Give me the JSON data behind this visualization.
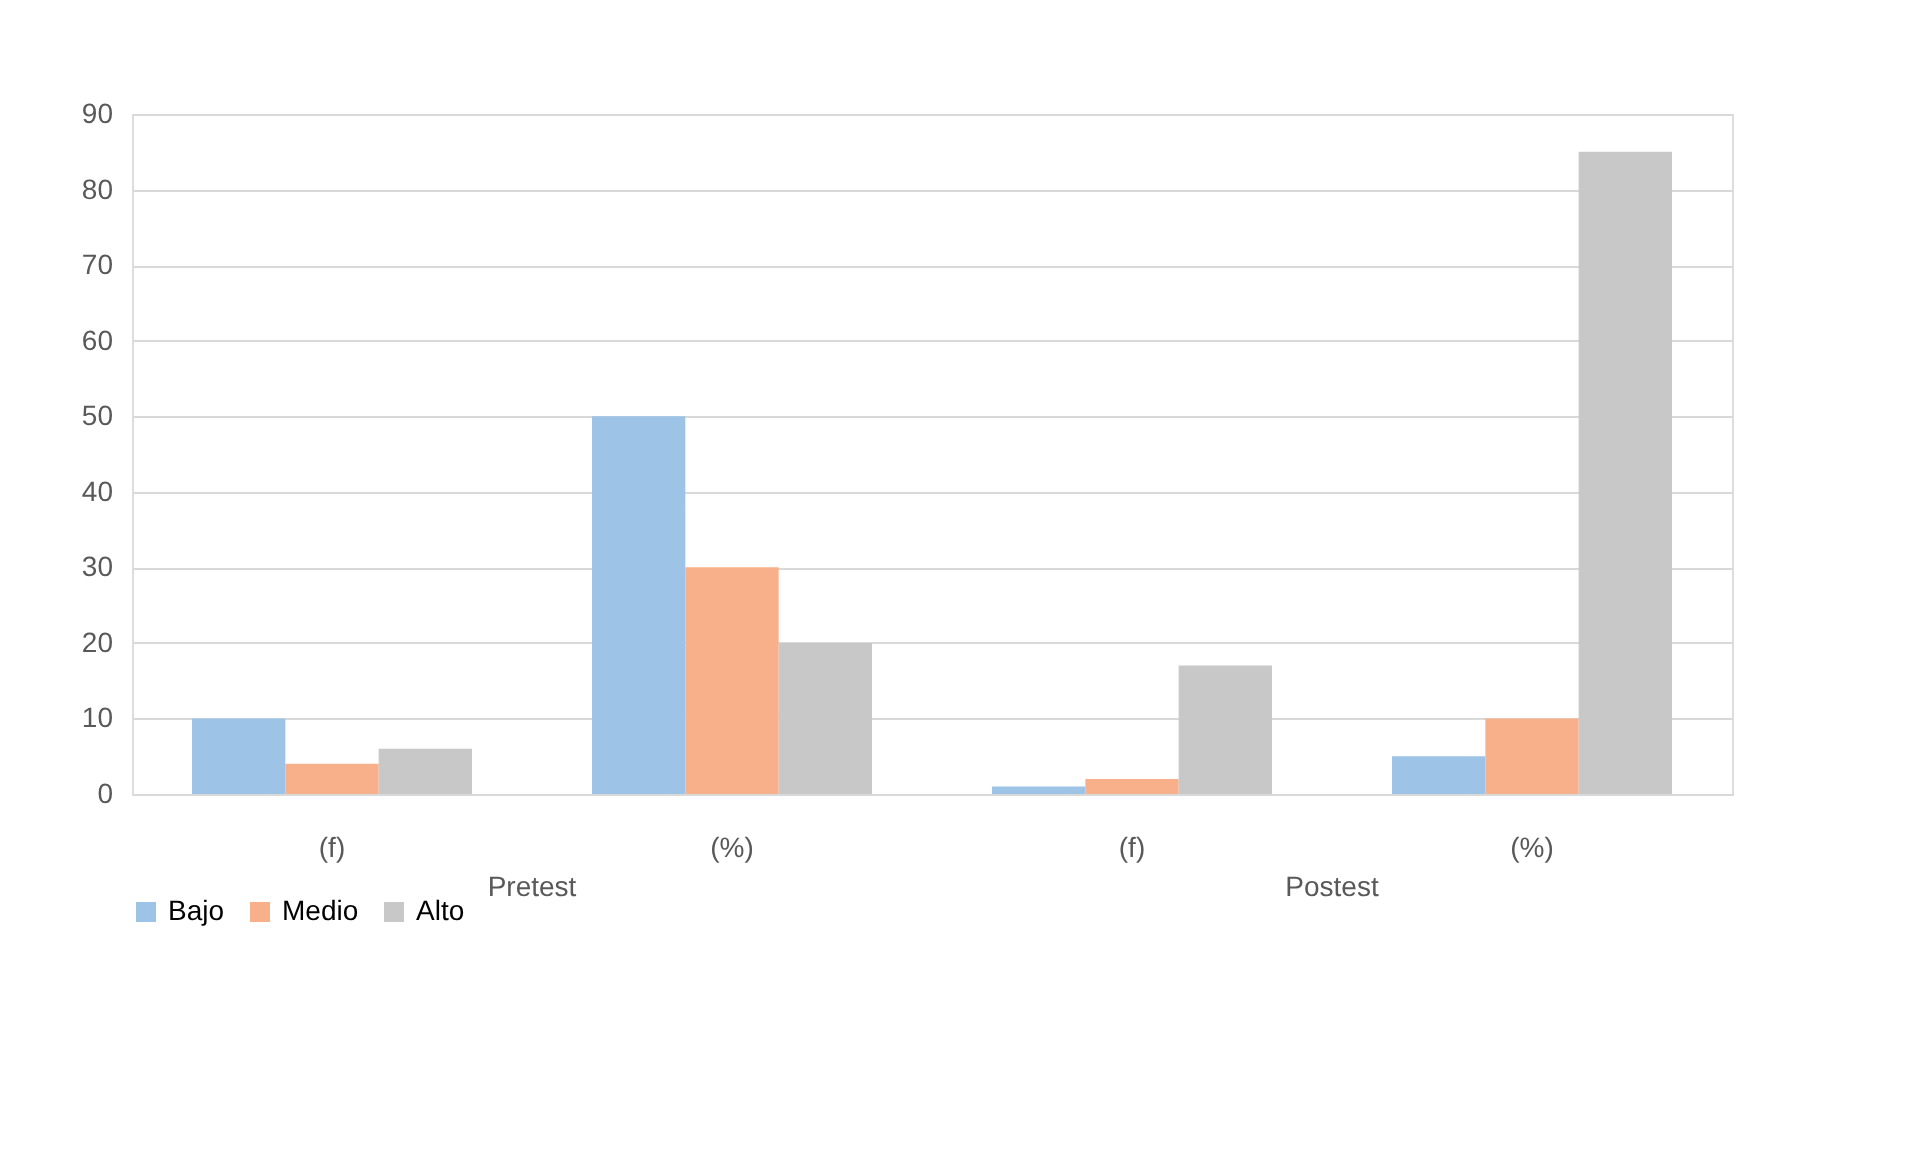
{
  "chart_data": {
    "type": "bar",
    "categories": [
      "(f)",
      "(%)",
      "(f)",
      "(%)"
    ],
    "series": [
      {
        "name": "Bajo",
        "color": "#9dc3e6",
        "values": [
          10,
          50,
          1,
          5
        ]
      },
      {
        "name": "Medio",
        "color": "#f8b08a",
        "values": [
          4,
          30,
          2,
          10
        ]
      },
      {
        "name": "Alto",
        "color": "#c8c8c8",
        "values": [
          6,
          20,
          17,
          85
        ]
      }
    ],
    "ylim": [
      0,
      90
    ],
    "yticks": [
      0,
      10,
      20,
      30,
      40,
      50,
      60,
      70,
      80,
      90
    ],
    "grid": "y",
    "legend": "bottom",
    "annotations": [
      "Pretest",
      "Postest"
    ]
  }
}
